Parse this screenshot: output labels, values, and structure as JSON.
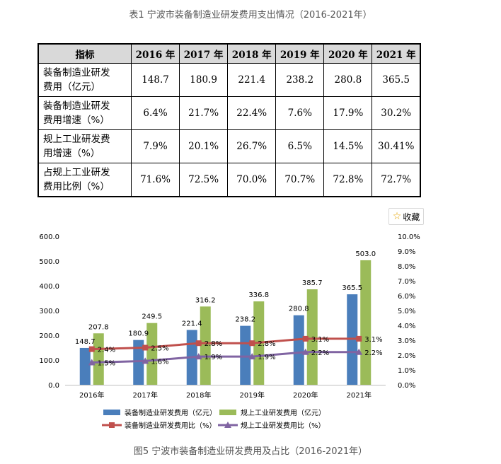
{
  "table": {
    "caption": "表1 宁波市装备制造业研发费用支出情况（2016-2021年）",
    "header": [
      "指标",
      "2016 年",
      "2017 年",
      "2018 年",
      "2019 年",
      "2020 年",
      "2021 年"
    ],
    "rows": [
      {
        "label_line1": "装备制造业研发",
        "label_line2": "费用（亿元）",
        "values": [
          "148.7",
          "180.9",
          "221.4",
          "238.2",
          "280.8",
          "365.5"
        ]
      },
      {
        "label_line1": "装备制造业研发",
        "label_line2": "费用增速（%）",
        "values": [
          "6.4%",
          "21.7%",
          "22.4%",
          "7.6%",
          "17.9%",
          "30.2%"
        ]
      },
      {
        "label_line1": "规上工业研发费",
        "label_line2": "用增速（%）",
        "values": [
          "7.9%",
          "20.1%",
          "26.7%",
          "6.5%",
          "14.5%",
          "30.41%"
        ]
      },
      {
        "label_line1": "占规上工业研发",
        "label_line2": "费用比例（%）",
        "values": [
          "71.6%",
          "72.5%",
          "70.0%",
          "70.7%",
          "72.8%",
          "72.7%"
        ]
      }
    ]
  },
  "favorite_button": {
    "label": "收藏",
    "icon": "star-icon",
    "icon_color": "#e5a400"
  },
  "chart_data": {
    "type": "bar",
    "categories": [
      "2016年",
      "2017年",
      "2018年",
      "2019年",
      "2020年",
      "2021年"
    ],
    "series": [
      {
        "name": "装备制造业研发费用（亿元）",
        "kind": "bar",
        "axis": "left",
        "color": "#4a7ebb",
        "values": [
          148.7,
          180.9,
          221.4,
          238.2,
          280.8,
          365.5
        ],
        "labels": [
          "148.7",
          "180.9",
          "221.4",
          "238.2",
          "280.8",
          "365.5"
        ]
      },
      {
        "name": "规上工业研发费用（亿元）",
        "kind": "bar",
        "axis": "left",
        "color": "#9bbb59",
        "values": [
          207.8,
          249.5,
          316.2,
          336.8,
          385.7,
          503.0
        ],
        "labels": [
          "207.8",
          "249.5",
          "316.2",
          "336.8",
          "385.7",
          "503.0"
        ]
      },
      {
        "name": "装备制造业研发费用比（%）",
        "kind": "line",
        "axis": "right",
        "color": "#c0504d",
        "values": [
          2.4,
          2.5,
          2.8,
          2.8,
          3.1,
          3.1
        ],
        "labels": [
          "2.4%",
          "2.5%",
          "2.8%",
          "2.8%",
          "3.1%",
          "3.1%"
        ]
      },
      {
        "name": "规上工业研发费用比（%）",
        "kind": "line",
        "axis": "right",
        "color": "#8064a2",
        "values": [
          1.5,
          1.6,
          1.9,
          1.9,
          2.2,
          2.2
        ],
        "labels": [
          "1.5%",
          "1.6%",
          "1.9%",
          "1.9%",
          "2.2%",
          "2.2%"
        ]
      }
    ],
    "y_left": {
      "min": 0,
      "max": 600,
      "step": 100,
      "ticks": [
        "0.0",
        "100.0",
        "200.0",
        "300.0",
        "400.0",
        "500.0",
        "600.0"
      ]
    },
    "y_right": {
      "min": 0,
      "max": 10,
      "step": 1,
      "ticks": [
        "0.0%",
        "1.0%",
        "2.0%",
        "3.0%",
        "4.0%",
        "5.0%",
        "6.0%",
        "7.0%",
        "8.0%",
        "9.0%",
        "10.0%"
      ]
    },
    "grid": false,
    "legend": "bottom",
    "caption": "图5 宁波市装备制造业研发费用及占比（2016-2021年）"
  }
}
